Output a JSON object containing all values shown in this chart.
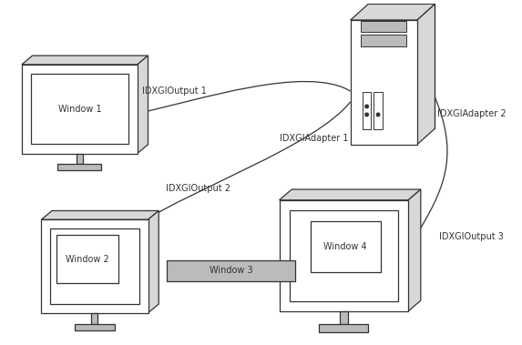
{
  "bg_color": "#ffffff",
  "line_color": "#333333",
  "fill_color": "#ffffff",
  "gray_light": "#d8d8d8",
  "gray_mid": "#bbbbbb",
  "labels": {
    "window1": "Window 1",
    "window2": "Window 2",
    "window3": "Window 3",
    "window4": "Window 4",
    "output1": "IDXGIOutput 1",
    "output2": "IDXGIOutput 2",
    "output3": "IDXGIOutput 3",
    "adapter1": "IDXGIAdapter 1",
    "adapter2": "IDXGIAdapter 2"
  },
  "fontsize": 7.0,
  "lw": 0.9
}
